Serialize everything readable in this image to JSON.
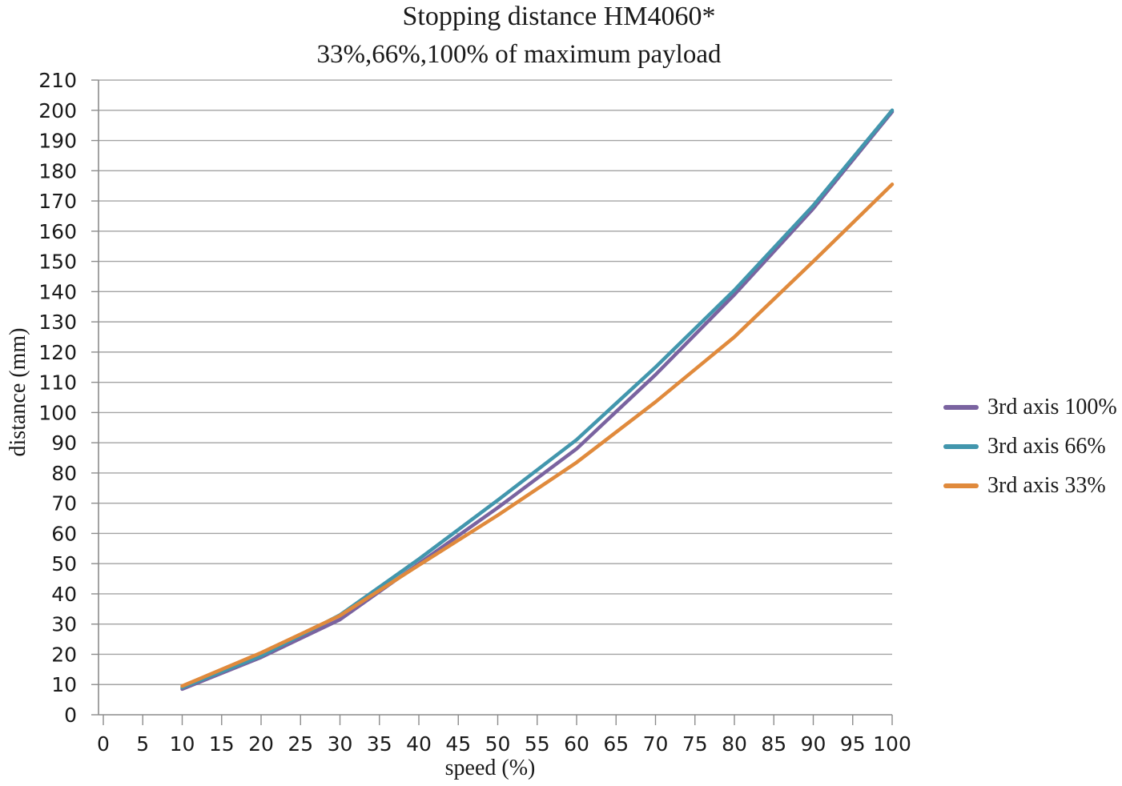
{
  "title": "Stopping distance HM4060*",
  "subtitle": "33%,66%,100% of maximum payload",
  "chart_data": {
    "type": "line",
    "title": "Stopping distance HM4060*",
    "subtitle": "33%,66%,100% of maximum payload",
    "xlabel": "speed (%)",
    "ylabel": "distance (mm)",
    "xlim": [
      0,
      100
    ],
    "ylim": [
      0,
      210
    ],
    "x_ticks": [
      0,
      5,
      10,
      15,
      20,
      25,
      30,
      35,
      40,
      45,
      50,
      55,
      60,
      65,
      70,
      75,
      80,
      85,
      90,
      95,
      100
    ],
    "y_ticks": [
      0,
      10,
      20,
      30,
      40,
      50,
      60,
      70,
      80,
      90,
      100,
      110,
      120,
      130,
      140,
      150,
      160,
      170,
      180,
      190,
      200,
      210
    ],
    "grid": "horizontal",
    "legend_position": "right",
    "x": [
      10,
      20,
      30,
      40,
      50,
      60,
      70,
      80,
      90,
      100
    ],
    "series": [
      {
        "name": "3rd axis 100%",
        "color": "#7A63A0",
        "values": [
          8.5,
          19,
          31.5,
          50,
          68.5,
          88,
          112.5,
          139,
          167.5,
          199.5
        ]
      },
      {
        "name": "3rd axis 66%",
        "color": "#4296AD",
        "values": [
          9,
          19.5,
          33,
          51.5,
          71,
          91,
          115,
          140.5,
          168.5,
          200
        ]
      },
      {
        "name": "3rd axis 33%",
        "color": "#E08A3C",
        "values": [
          9.5,
          20.5,
          32.8,
          49.5,
          66,
          83.5,
          103.5,
          125,
          150,
          175.5
        ]
      }
    ],
    "colors": {
      "gridline": "#A3A3A3",
      "axis": "#8C8C8C",
      "text": "#1A1A1A"
    }
  }
}
